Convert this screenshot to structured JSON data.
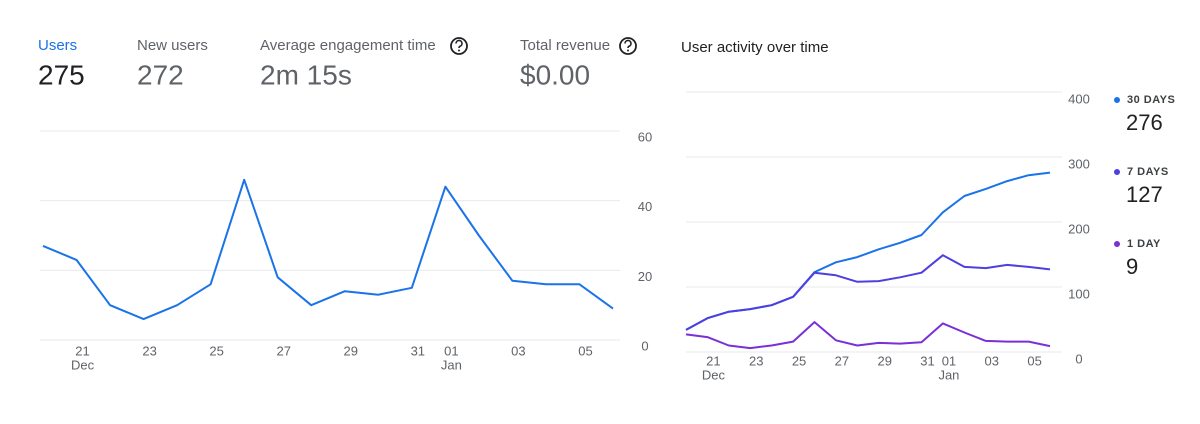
{
  "metrics": [
    {
      "label": "Users",
      "value": 275
    },
    {
      "label": "New users",
      "value": 272
    },
    {
      "label": "Average engagement time",
      "value": "2m 15s"
    },
    {
      "label": "Total revenue",
      "value": "$0.00"
    }
  ],
  "chart_data": [
    {
      "type": "line",
      "categories": [
        null,
        "21",
        null,
        "23",
        null,
        "25",
        null,
        "27",
        null,
        "29",
        null,
        "31",
        "01",
        null,
        "03",
        null,
        "05",
        null
      ],
      "months": [
        null,
        "Dec",
        null,
        null,
        null,
        null,
        null,
        null,
        null,
        null,
        null,
        null,
        "Jan",
        null,
        null,
        null,
        null,
        null
      ],
      "series": [
        {
          "color": "#1a73e8",
          "values": [
            27,
            23,
            10,
            6,
            10,
            16,
            46,
            18,
            10,
            14,
            13,
            15,
            44,
            30,
            17,
            16,
            16,
            9
          ]
        }
      ],
      "ylim": [
        0,
        60
      ],
      "yticks": [
        0,
        20,
        40,
        60
      ],
      "grid": true
    },
    {
      "type": "line",
      "title": "User activity over time",
      "categories": [
        null,
        "21",
        null,
        "23",
        null,
        "25",
        null,
        "27",
        null,
        "29",
        null,
        "31",
        "01",
        null,
        "03",
        null,
        "05",
        null
      ],
      "months": [
        null,
        "Dec",
        null,
        null,
        null,
        null,
        null,
        null,
        null,
        null,
        null,
        null,
        "Jan",
        null,
        null,
        null,
        null,
        null
      ],
      "series": [
        {
          "name": "30 DAYS",
          "legend_value": 276,
          "color": "#1a73e8",
          "values": [
            34,
            52,
            62,
            66,
            72,
            85,
            123,
            138,
            146,
            158,
            168,
            180,
            215,
            240,
            251,
            263,
            272,
            276
          ]
        },
        {
          "name": "7 DAYS",
          "legend_value": 127,
          "color": "#4f3ee0",
          "values": [
            34,
            52,
            62,
            66,
            72,
            85,
            122,
            118,
            108,
            109,
            115,
            122,
            149,
            131,
            129,
            134,
            131,
            127
          ]
        },
        {
          "name": "1 DAY",
          "legend_value": 9,
          "color": "#7b2fd6",
          "values": [
            27,
            23,
            10,
            6,
            10,
            16,
            46,
            18,
            10,
            14,
            13,
            15,
            44,
            30,
            17,
            16,
            16,
            9
          ]
        }
      ],
      "ylim": [
        0,
        400
      ],
      "yticks": [
        0,
        100,
        200,
        300,
        400
      ],
      "grid": true,
      "legend": "right"
    }
  ]
}
